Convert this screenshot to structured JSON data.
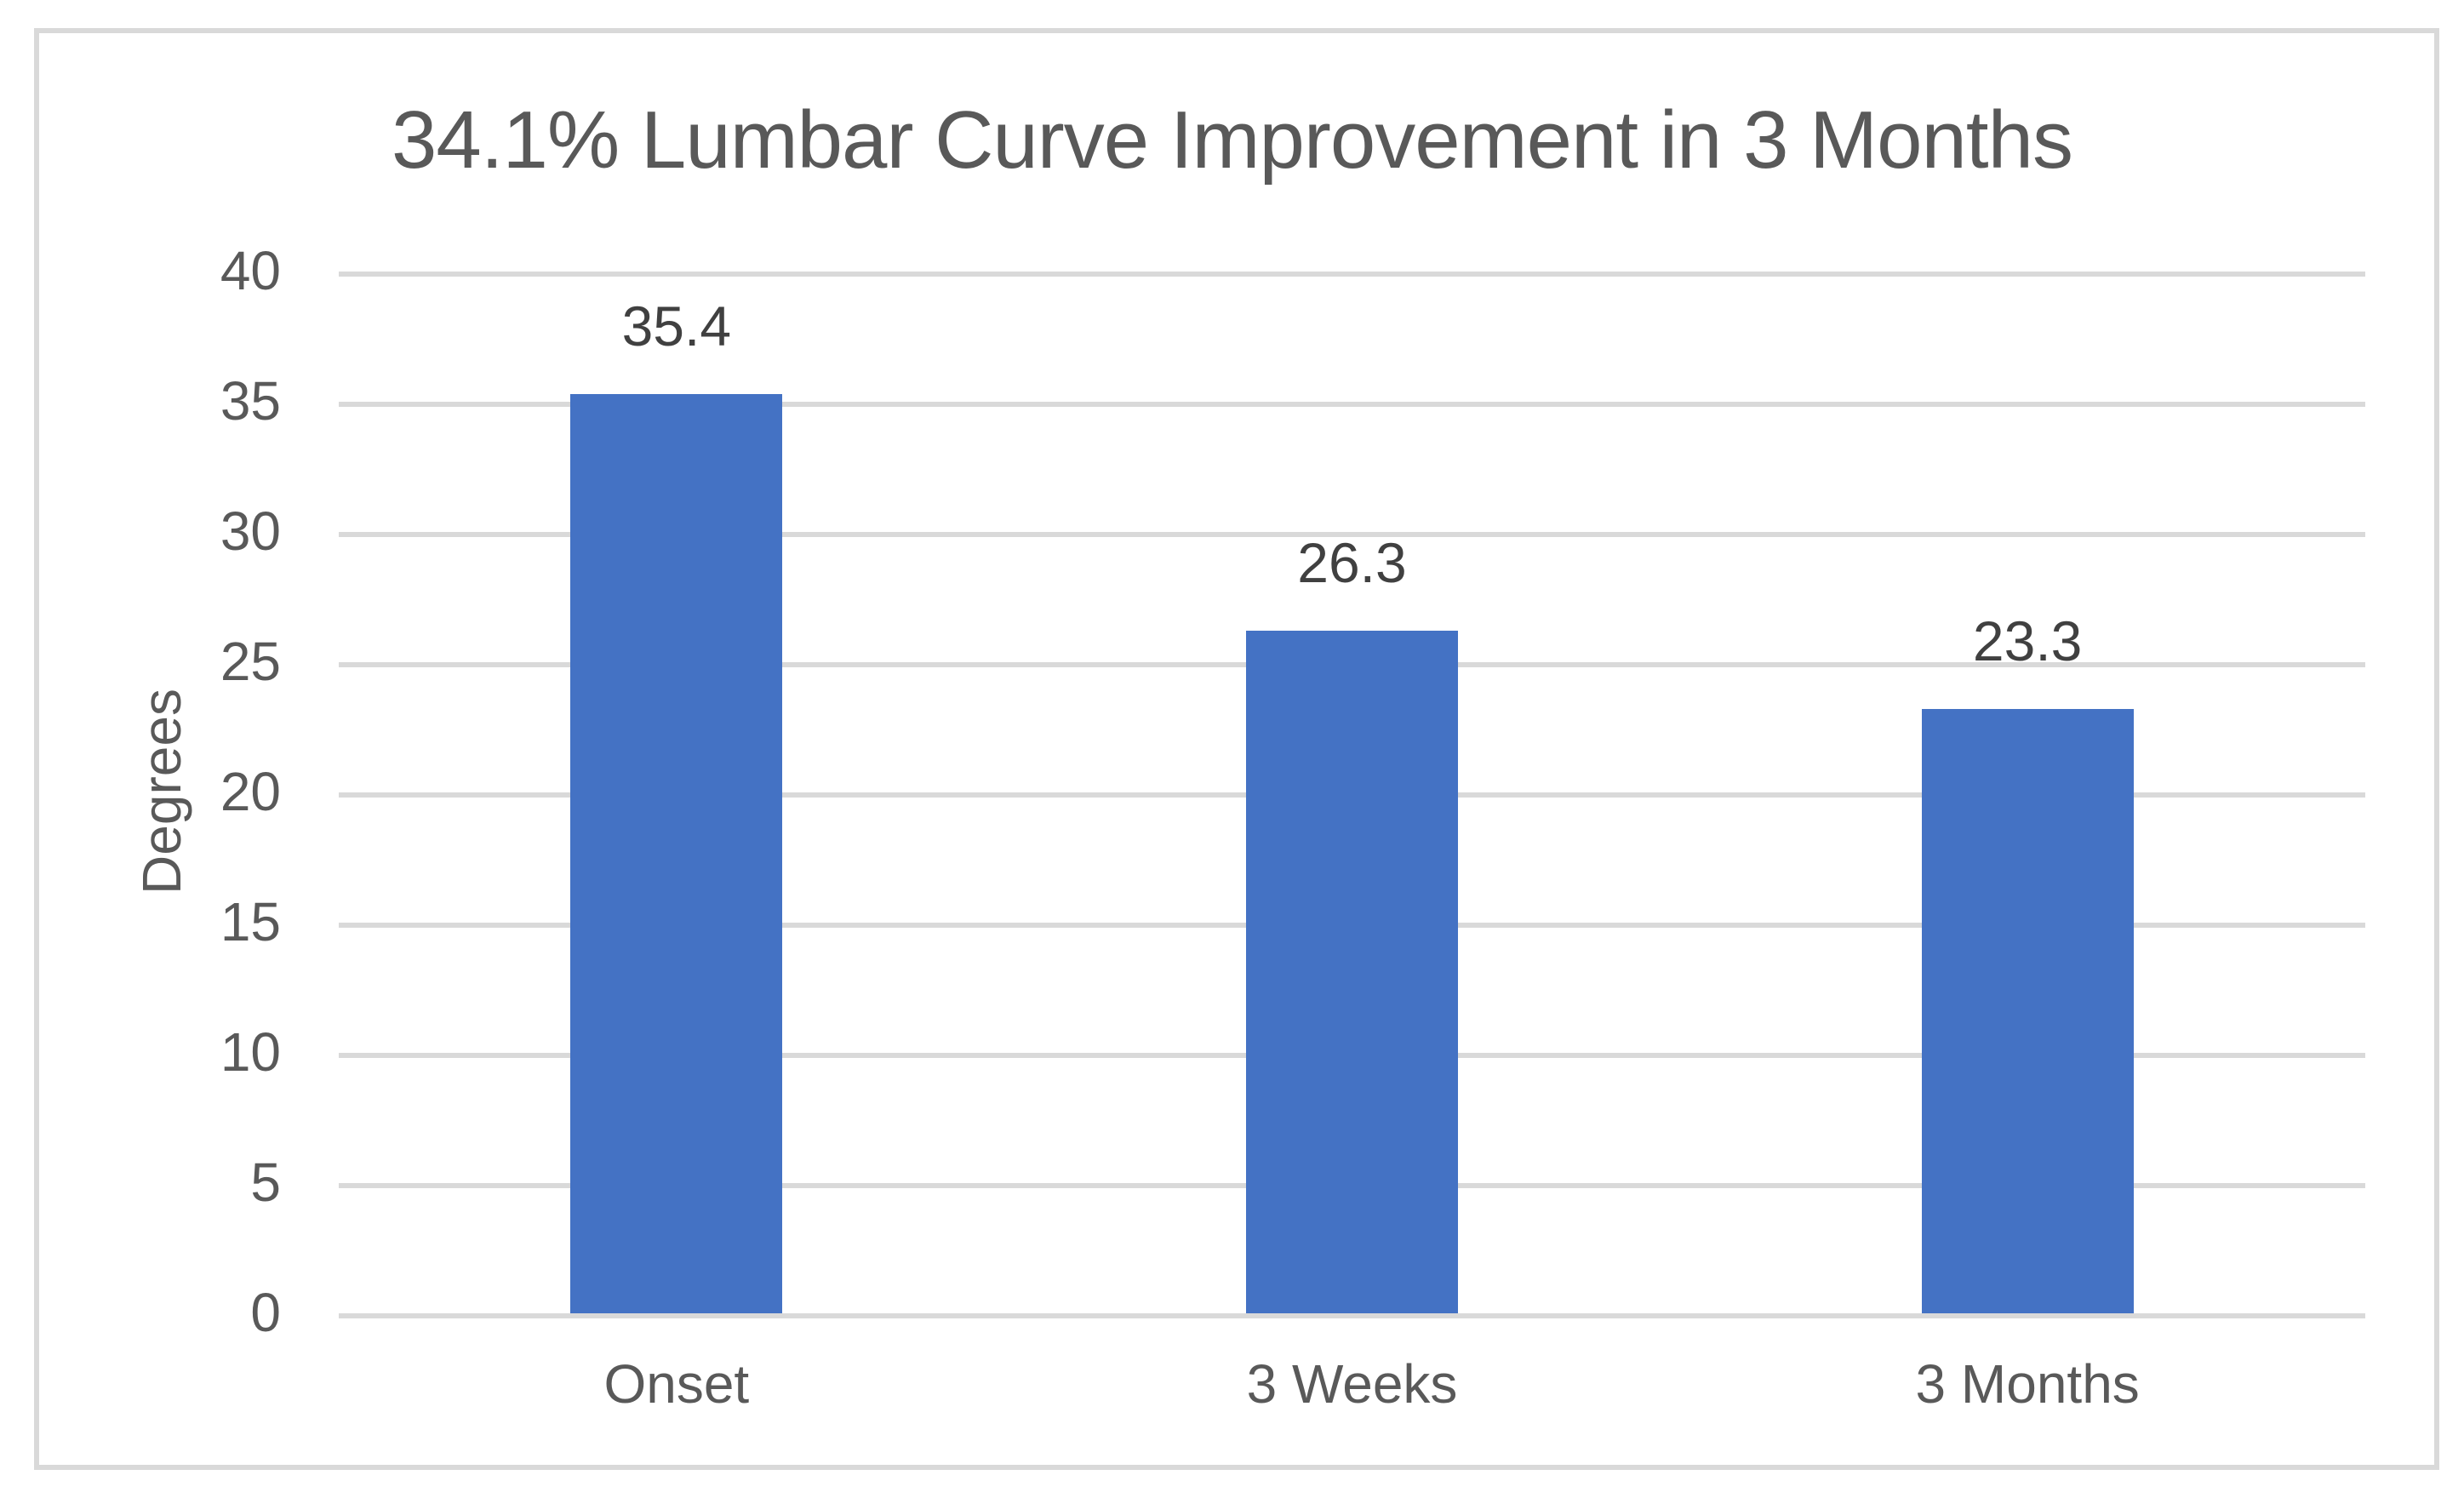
{
  "chart_data": {
    "type": "bar",
    "title": "34.1% Lumbar Curve Improvement in 3 Months",
    "categories": [
      "Onset",
      "3 Weeks",
      "3 Months"
    ],
    "values": [
      35.4,
      26.3,
      23.3
    ],
    "data_labels": [
      "35.4",
      "26.3",
      "23.3"
    ],
    "xlabel": "",
    "ylabel": "Degrees",
    "ylim": [
      0,
      40
    ],
    "yticks": [
      0,
      5,
      10,
      15,
      20,
      25,
      30,
      35,
      40
    ],
    "grid": "horizontal-major",
    "legend": "none",
    "colors": {
      "bar": "#4472C4",
      "gridline": "#D9D9D9",
      "frame_border": "#D9D9D9",
      "title_text": "#595959",
      "axis_text": "#595959",
      "data_label_text": "#404040",
      "background": "#FFFFFF"
    }
  }
}
